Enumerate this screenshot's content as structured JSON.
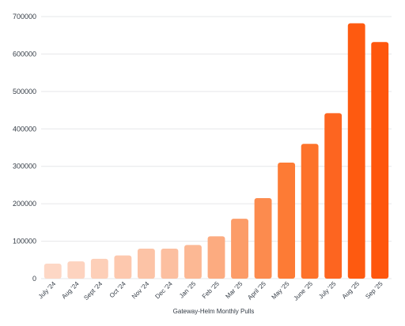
{
  "chart_data": {
    "type": "bar",
    "title": "",
    "xlabel": "Gateway-Helm Monthly Pulls",
    "ylabel": "",
    "ylim": [
      0,
      700000
    ],
    "yticks": [
      0,
      100000,
      200000,
      300000,
      400000,
      500000,
      600000,
      700000
    ],
    "ytick_labels": [
      "0",
      "100000",
      "200000",
      "300000",
      "400000",
      "500000",
      "600000",
      "700000"
    ],
    "grid": true,
    "categories": [
      "July '24",
      "Aug '24",
      "Sept '24",
      "Oct '24",
      "Nov '24",
      "Dec '24",
      "Jan '25",
      "Feb '25",
      "Mar '25",
      "April '25",
      "May '25",
      "June '25",
      "July '25",
      "Aug '25",
      "Sep '25"
    ],
    "values": [
      40000,
      46000,
      53000,
      62000,
      80000,
      80000,
      90000,
      113000,
      160000,
      215000,
      310000,
      360000,
      442000,
      682000,
      632000
    ],
    "colors": [
      "#fdd7c5",
      "#fdd3bf",
      "#fdcfb8",
      "#fdc8ae",
      "#fcc3a6",
      "#fcbfa0",
      "#fcb894",
      "#fcab80",
      "#fc9c68",
      "#fc8b4e",
      "#fd7b35",
      "#fd722a",
      "#fd6520",
      "#fe5a10",
      "#fe560d"
    ]
  }
}
